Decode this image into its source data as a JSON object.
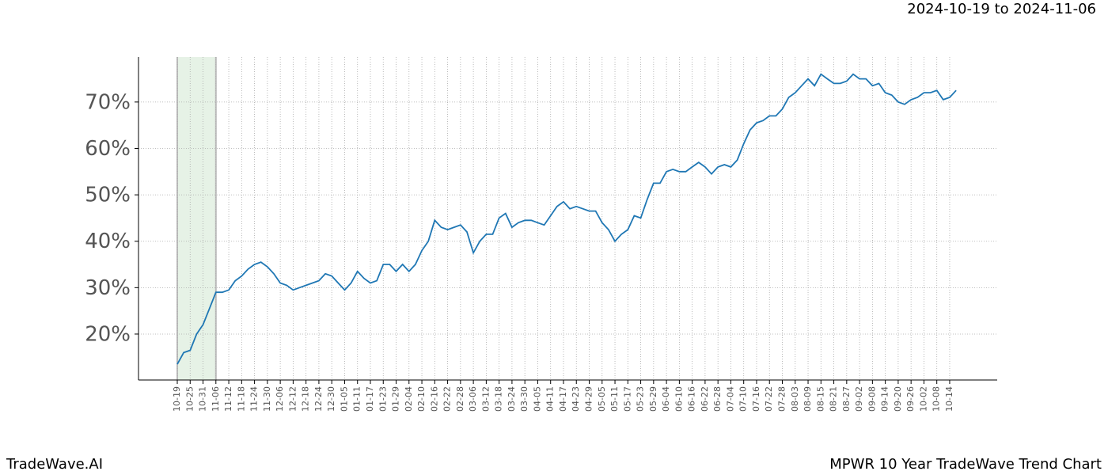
{
  "chart_data": {
    "type": "line",
    "subtitle": "2024-10-19 to 2024-11-06",
    "footer_left": "TradeWave.AI",
    "footer_right": "MPWR 10 Year TradeWave Trend Chart",
    "highlight": {
      "from": "10-19",
      "to": "11-06",
      "color": "#e6f2e6"
    },
    "categories": [
      "10-19",
      null,
      "10-25",
      null,
      "10-31",
      null,
      "11-06",
      null,
      "11-12",
      null,
      "11-18",
      null,
      "11-24",
      null,
      "11-30",
      null,
      "12-06",
      null,
      "12-12",
      null,
      "12-18",
      null,
      "12-24",
      null,
      "12-30",
      null,
      "01-05",
      null,
      "01-11",
      null,
      "01-17",
      null,
      "01-23",
      null,
      "01-29",
      null,
      "02-04",
      null,
      "02-10",
      null,
      "02-16",
      null,
      "02-22",
      null,
      "02-28",
      null,
      "03-06",
      null,
      "03-12",
      null,
      "03-18",
      null,
      "03-24",
      null,
      "03-30",
      null,
      "04-05",
      null,
      "04-11",
      null,
      "04-17",
      null,
      "04-23",
      null,
      "04-29",
      null,
      "05-05",
      null,
      "05-11",
      null,
      "05-17",
      null,
      "05-23",
      null,
      "05-29",
      null,
      "06-04",
      null,
      "06-10",
      null,
      "06-16",
      null,
      "06-22",
      null,
      "06-28",
      null,
      "07-04",
      null,
      "07-10",
      null,
      "07-16",
      null,
      "07-22",
      null,
      "07-28",
      null,
      "08-03",
      null,
      "08-09",
      null,
      "08-15",
      null,
      "08-21",
      null,
      "08-27",
      null,
      "09-02",
      null,
      "09-08",
      null,
      "09-14",
      null,
      "09-20",
      null,
      "09-26",
      null,
      "10-02",
      null,
      "10-08",
      null,
      "10-14",
      null
    ],
    "series": [
      {
        "color": "#1f77b4",
        "values": [
          13.5,
          16,
          16.5,
          20,
          22,
          25.5,
          29,
          29,
          29.5,
          31.5,
          32.5,
          34,
          35,
          35.5,
          34.5,
          33,
          31,
          30.5,
          29.5,
          30,
          30.5,
          31,
          31.5,
          33,
          32.5,
          31,
          29.5,
          31,
          33.5,
          32,
          31,
          31.5,
          35,
          35,
          33.5,
          35,
          33.5,
          35,
          38,
          40,
          44.5,
          43,
          42.5,
          43,
          43.5,
          42,
          37.5,
          40,
          41.5,
          41.5,
          45,
          46,
          43,
          44,
          44.5,
          44.5,
          44,
          43.5,
          45.5,
          47.5,
          48.5,
          47,
          47.5,
          47,
          46.5,
          46.5,
          44,
          42.5,
          40,
          41.5,
          42.5,
          45.5,
          45,
          49,
          52.5,
          52.5,
          55,
          55.5,
          55,
          55,
          56,
          57,
          56,
          54.5,
          56,
          56.5,
          56,
          57.5,
          61,
          64,
          65.5,
          66,
          67,
          67,
          68.5,
          71,
          72,
          73.5,
          75,
          73.5,
          76,
          75,
          74,
          74,
          74.5,
          76,
          75,
          75,
          73.5,
          74,
          72,
          71.5,
          70,
          69.5,
          70.5,
          71,
          72,
          72,
          72.5,
          70.5,
          71,
          72.5
        ]
      }
    ],
    "ylim": [
      10.1,
      79.7
    ],
    "yticks": [
      {
        "value": 20,
        "label": "20%"
      },
      {
        "value": 30,
        "label": "30%"
      },
      {
        "value": 40,
        "label": "40%"
      },
      {
        "value": 50,
        "label": "50%"
      },
      {
        "value": 60,
        "label": "60%"
      },
      {
        "value": 70,
        "label": "70%"
      }
    ],
    "grid": true
  }
}
